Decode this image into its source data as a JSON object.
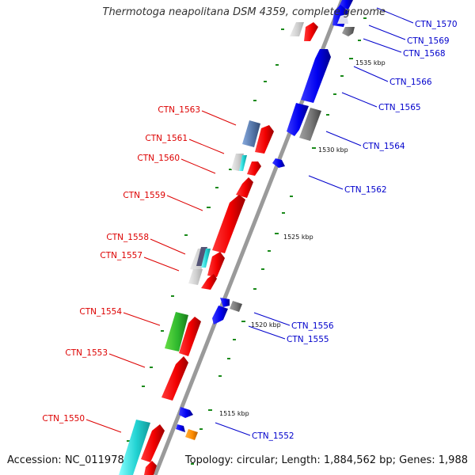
{
  "title": "Thermotoga neapolitana DSM 4359, complete genome",
  "footer": {
    "accession": "Accession: NC_011978",
    "summary": "Topology: circular; Length: 1,884,562 bp; Genes: 1,988"
  },
  "colors": {
    "backbone": "#999999",
    "left_label": "#dd0000",
    "right_label": "#0000cc",
    "tick_dot": "#1a8a1a"
  },
  "ticks": [
    "1515 kbp",
    "1520 kbp",
    "1525 kbp",
    "1530 kbp",
    "1535 kbp"
  ],
  "left_labels": [
    "CTN_1563",
    "CTN_1561",
    "CTN_1560",
    "CTN_1559",
    "CTN_1558",
    "CTN_1557",
    "CTN_1554",
    "CTN_1553",
    "CTN_1550"
  ],
  "right_labels": [
    "CTN_1570",
    "CTN_1569",
    "CTN_1568",
    "CTN_1566",
    "CTN_1565",
    "CTN_1564",
    "CTN_1562",
    "CTN_1556",
    "CTN_1555",
    "CTN_1552"
  ]
}
